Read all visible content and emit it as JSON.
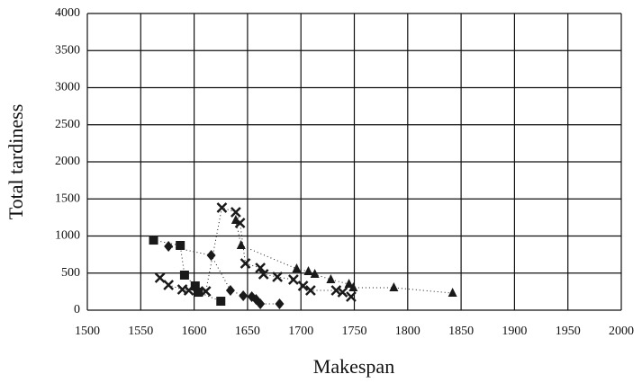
{
  "chart_data": {
    "type": "scatter",
    "xlabel": "Makespan",
    "ylabel": "Total tardiness",
    "xlim": [
      1500,
      2000
    ],
    "ylim": [
      0,
      4000
    ],
    "xticks": [
      1500,
      1550,
      1600,
      1650,
      1700,
      1750,
      1800,
      1850,
      1900,
      1950,
      2000
    ],
    "yticks": [
      0,
      500,
      1000,
      1500,
      2000,
      2500,
      3000,
      3500,
      4000
    ],
    "grid": true,
    "series": [
      {
        "marker": "diamond",
        "color": "#1a1a1a",
        "x": [
          1576,
          1616,
          1634,
          1646,
          1654,
          1658,
          1662,
          1680
        ],
        "values": [
          860,
          740,
          267,
          194,
          182,
          145,
          85,
          85
        ]
      },
      {
        "marker": "square",
        "color": "#1a1a1a",
        "x": [
          1562,
          1587,
          1591,
          1601,
          1604,
          1625
        ],
        "values": [
          945,
          873,
          473,
          327,
          242,
          121
        ]
      },
      {
        "marker": "triangle",
        "color": "#1a1a1a",
        "x": [
          1639,
          1644,
          1696,
          1707,
          1713,
          1728,
          1745,
          1749,
          1787,
          1842
        ],
        "values": [
          1212,
          873,
          558,
          521,
          485,
          412,
          352,
          303,
          303,
          230
        ]
      },
      {
        "marker": "cross",
        "color": "#1a1a1a",
        "x": [
          1568,
          1576,
          1589,
          1595,
          1611,
          1626,
          1639,
          1643,
          1648,
          1662,
          1665,
          1678,
          1693,
          1702,
          1709,
          1733,
          1739,
          1747
        ],
        "values": [
          436,
          340,
          279,
          267,
          255,
          1382,
          1321,
          1176,
          630,
          570,
          485,
          448,
          412,
          327,
          267,
          267,
          242,
          182
        ]
      }
    ]
  }
}
